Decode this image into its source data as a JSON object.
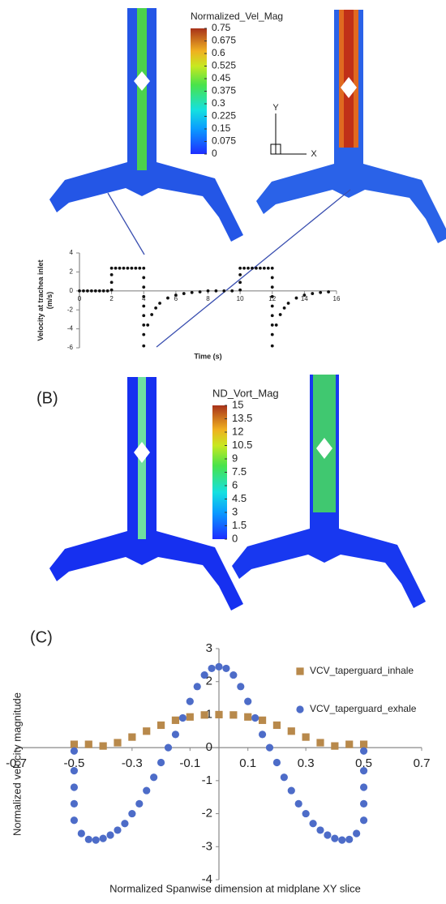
{
  "figure": {
    "panel_labels": [
      "(B)",
      "(C)"
    ],
    "axis_triad": {
      "y": "Y",
      "x": "X"
    }
  },
  "chart_data": [
    {
      "type": "colorbar",
      "title": "Normalized_Vel_Mag",
      "lim": [
        0,
        0.75
      ],
      "ticks": [
        0,
        0.075,
        0.15,
        0.225,
        0.3,
        0.375,
        0.45,
        0.525,
        0.6,
        0.675,
        0.75
      ]
    },
    {
      "type": "scatter",
      "xlabel": "Time (s)",
      "ylabel": [
        "Velocity at trachea inlet",
        "(m/s)"
      ],
      "xlim": [
        0,
        16
      ],
      "ylim": [
        -6,
        4
      ],
      "xticks": [
        0,
        2,
        4,
        6,
        8,
        10,
        12,
        14,
        16
      ],
      "yticks": [
        -6,
        -4,
        -2,
        0,
        2,
        4
      ],
      "series": [
        {
          "color": "#111111",
          "marker": "circle",
          "x": [
            0,
            0.25,
            0.5,
            0.75,
            1,
            1.25,
            1.5,
            1.75,
            2,
            2,
            2,
            2,
            2.25,
            2.5,
            2.75,
            3,
            3.25,
            3.5,
            3.75,
            4,
            4,
            4,
            4,
            4,
            4,
            4,
            4,
            4,
            4.25,
            4.5,
            4.75,
            5,
            5.5,
            6,
            6.5,
            7,
            7.5,
            8,
            8.5,
            9,
            9.5,
            10,
            10,
            10,
            10,
            10.25,
            10.5,
            10.75,
            11,
            11.25,
            11.5,
            11.75,
            12,
            12,
            12,
            12,
            12,
            12,
            12,
            12,
            12,
            12.25,
            12.5,
            12.75,
            13,
            13.5,
            14,
            14.5,
            15,
            15.5
          ],
          "values": [
            0,
            0,
            0,
            0,
            0,
            0,
            0,
            0,
            0.1,
            0.9,
            1.7,
            2.4,
            2.4,
            2.4,
            2.4,
            2.4,
            2.4,
            2.4,
            2.4,
            2.4,
            1.4,
            0.4,
            -0.6,
            -1.6,
            -2.6,
            -3.6,
            -4.6,
            -5.8,
            -3.6,
            -2.5,
            -1.8,
            -1.3,
            -0.75,
            -0.45,
            -0.28,
            -0.17,
            -0.1,
            0,
            0,
            0,
            0,
            0.1,
            0.9,
            1.7,
            2.4,
            2.4,
            2.4,
            2.4,
            2.4,
            2.4,
            2.4,
            2.4,
            2.4,
            1.4,
            0.4,
            -0.6,
            -1.6,
            -2.6,
            -3.6,
            -4.6,
            -5.8,
            -3.6,
            -2.5,
            -1.8,
            -1.3,
            -0.75,
            -0.45,
            -0.28,
            -0.17,
            -0.1
          ]
        }
      ]
    },
    {
      "type": "colorbar",
      "title": "ND_Vort_Mag",
      "lim": [
        0,
        15
      ],
      "ticks": [
        0,
        1.5,
        3,
        4.5,
        6,
        7.5,
        9,
        10.5,
        12,
        13.5,
        15
      ]
    },
    {
      "type": "scatter",
      "xlabel": "Normalized Spanwise dimension at midplane XY slice",
      "ylabel": [
        "Normalized velocity magnitude"
      ],
      "xlim": [
        -0.7,
        0.7
      ],
      "ylim": [
        -4,
        3
      ],
      "xticks": [
        -0.7,
        -0.5,
        -0.3,
        -0.1,
        0.1,
        0.3,
        0.5,
        0.7
      ],
      "yticks": [
        -4,
        -3,
        -2,
        -1,
        0,
        1,
        2,
        3
      ],
      "legend": "upper right",
      "series": [
        {
          "name": "VCV_taperguard_inhale",
          "color": "#b8894b",
          "marker": "square",
          "x": [
            -0.5,
            -0.45,
            -0.4,
            -0.35,
            -0.3,
            -0.25,
            -0.2,
            -0.15,
            -0.1,
            -0.05,
            0,
            0.05,
            0.1,
            0.15,
            0.2,
            0.25,
            0.3,
            0.35,
            0.4,
            0.45,
            0.5
          ],
          "values": [
            0.1,
            0.1,
            0.05,
            0.15,
            0.32,
            0.5,
            0.68,
            0.83,
            0.93,
            0.99,
            1.0,
            0.99,
            0.93,
            0.83,
            0.68,
            0.5,
            0.32,
            0.15,
            0.05,
            0.1,
            0.1
          ]
        },
        {
          "name": "VCV_taperguard_exhale",
          "color": "#4d6cc8",
          "marker": "circle",
          "x": [
            -0.5,
            -0.5,
            -0.5,
            -0.5,
            -0.5,
            -0.475,
            -0.45,
            -0.425,
            -0.4,
            -0.375,
            -0.35,
            -0.325,
            -0.3,
            -0.275,
            -0.25,
            -0.225,
            -0.2,
            -0.175,
            -0.15,
            -0.125,
            -0.1,
            -0.075,
            -0.05,
            -0.025,
            0,
            0.025,
            0.05,
            0.075,
            0.1,
            0.125,
            0.15,
            0.175,
            0.2,
            0.225,
            0.25,
            0.275,
            0.3,
            0.325,
            0.35,
            0.375,
            0.4,
            0.425,
            0.45,
            0.475,
            0.5,
            0.5,
            0.5,
            0.5,
            0.5
          ],
          "values": [
            -2.2,
            -1.7,
            -1.2,
            -0.7,
            -0.1,
            -2.6,
            -2.78,
            -2.8,
            -2.75,
            -2.65,
            -2.5,
            -2.3,
            -2.0,
            -1.7,
            -1.3,
            -0.9,
            -0.45,
            0,
            0.4,
            0.9,
            1.4,
            1.85,
            2.2,
            2.4,
            2.45,
            2.4,
            2.2,
            1.85,
            1.4,
            0.9,
            0.4,
            0,
            -0.45,
            -0.9,
            -1.3,
            -1.7,
            -2.0,
            -2.3,
            -2.5,
            -2.65,
            -2.75,
            -2.8,
            -2.78,
            -2.6,
            -0.1,
            -0.7,
            -1.2,
            -1.7,
            -2.2
          ]
        }
      ]
    }
  ]
}
